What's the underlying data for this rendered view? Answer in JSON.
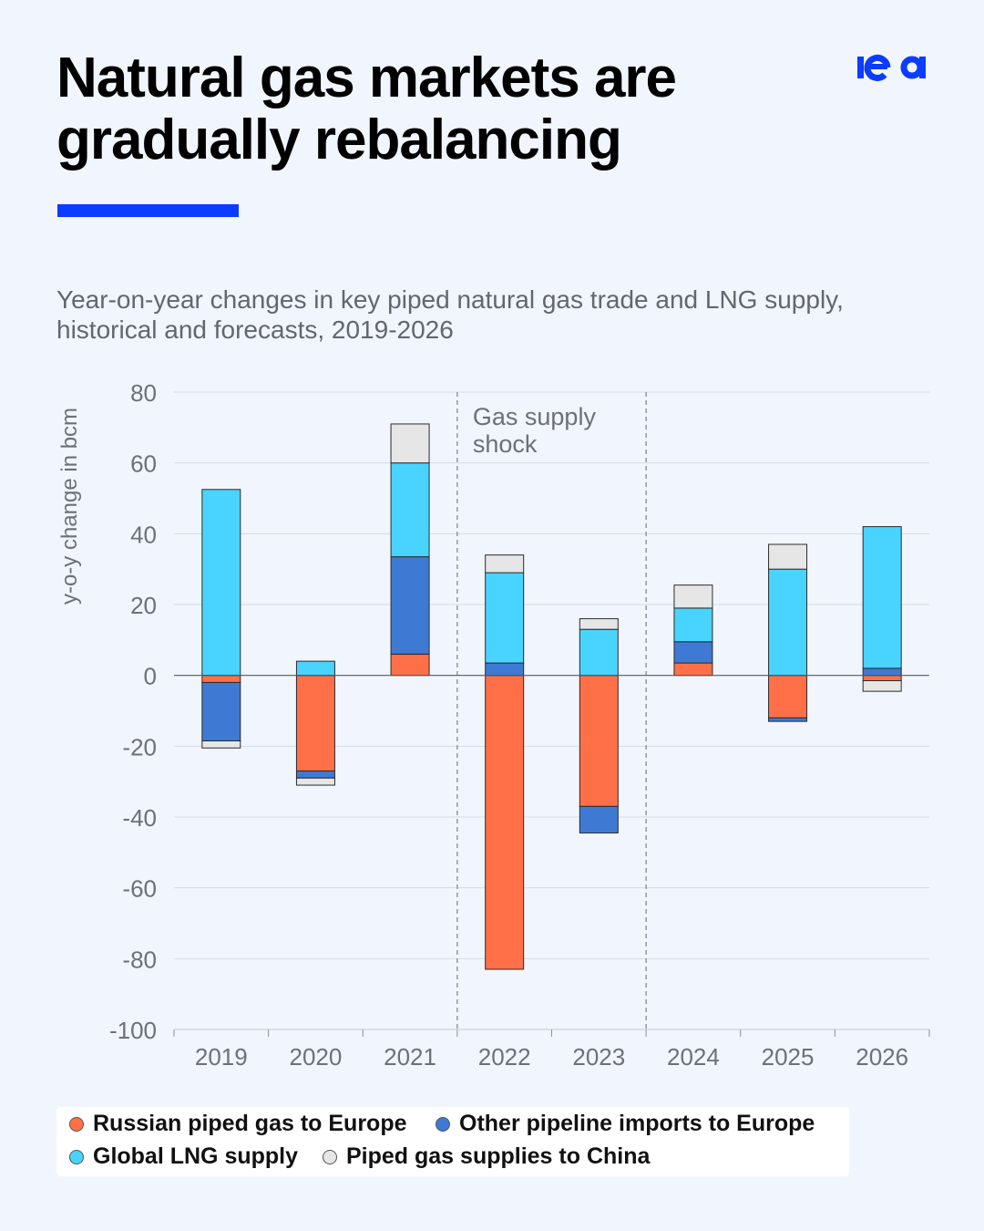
{
  "header": {
    "title": "Natural gas markets are gradually rebalancing",
    "subtitle": "Year-on-year changes in key piped natural gas trade and LNG supply, historical and forecasts, 2019-2026",
    "logo_text": "iea",
    "accent_color": "#0b3cff"
  },
  "chart_data": {
    "type": "bar",
    "stacked": true,
    "categories": [
      "2019",
      "2020",
      "2021",
      "2022",
      "2023",
      "2024",
      "2025",
      "2026"
    ],
    "ylabel": "y-o-y change in bcm",
    "ylim": [
      -100,
      80
    ],
    "yticks": [
      80,
      60,
      40,
      20,
      0,
      -20,
      -40,
      -60,
      -80,
      -100
    ],
    "grid": true,
    "annotation": {
      "text_lines": [
        "Gas supply",
        "shock"
      ],
      "span": [
        "2022",
        "2023"
      ]
    },
    "series": [
      {
        "name": "Russian piped gas to Europe",
        "color": "#ff7049",
        "values": [
          -2,
          -27,
          6,
          -83,
          -37,
          3.5,
          -12,
          -1.5
        ]
      },
      {
        "name": "Other pipeline imports to Europe",
        "color": "#3e7ad3",
        "values": [
          -16.5,
          -2,
          27.5,
          3.5,
          -7.5,
          6,
          -1,
          2
        ]
      },
      {
        "name": "Global LNG supply",
        "color": "#49d3ff",
        "values": [
          52.5,
          4,
          26.5,
          25.5,
          13,
          9.5,
          30,
          40
        ]
      },
      {
        "name": "Piped gas supplies to China",
        "color": "#e6e6e6",
        "values": [
          -2,
          -2,
          11,
          5,
          3,
          6.5,
          7,
          -3
        ]
      }
    ],
    "legend": "bottom"
  }
}
